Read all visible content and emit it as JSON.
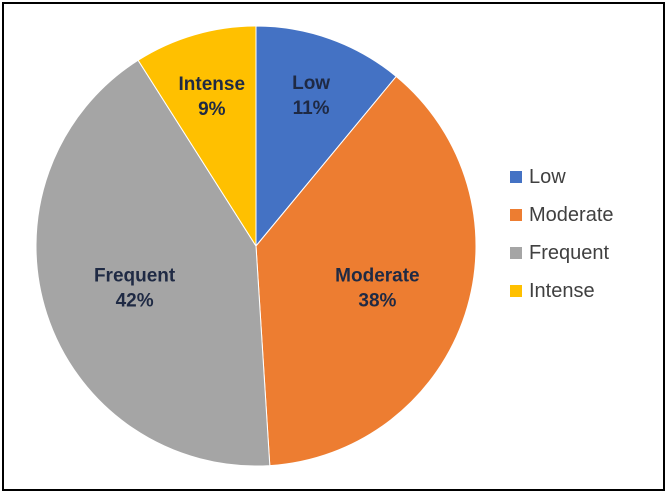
{
  "chart_data": {
    "type": "pie",
    "categories": [
      "Low",
      "Moderate",
      "Frequent",
      "Intense"
    ],
    "values": [
      11,
      38,
      42,
      9
    ],
    "value_suffix": "%",
    "colors": [
      "#4472C4",
      "#ED7D31",
      "#A5A5A5",
      "#FFC000"
    ],
    "label_colors": [
      "#1F2A44",
      "#1F2A44",
      "#1F2A44",
      "#1F2A44"
    ],
    "start_angle_deg": 0,
    "direction": "clockwise",
    "legend_position": "right"
  }
}
